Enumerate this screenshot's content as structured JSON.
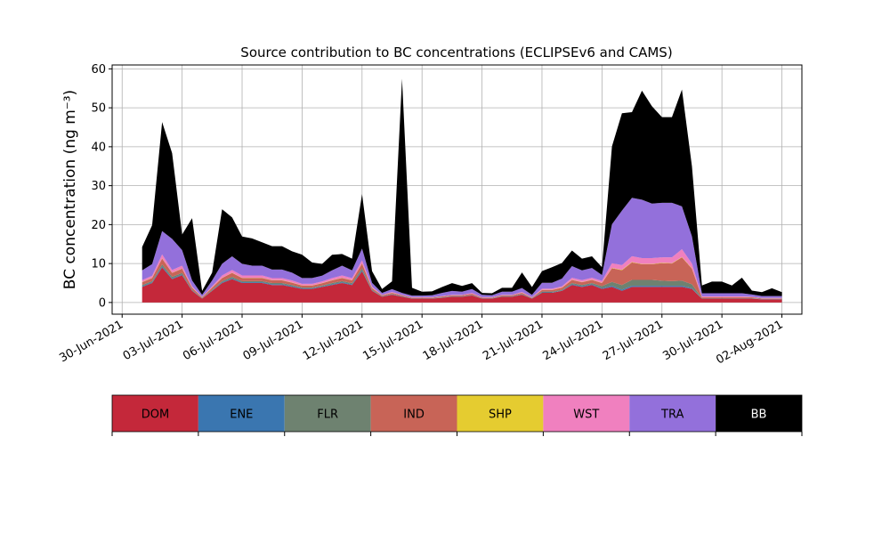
{
  "chart_data": {
    "type": "area",
    "title": "Source contribution to BC concentrations (ECLIPSEv6 and CAMS)",
    "xlabel": "",
    "ylabel": "BC concentration (ng m⁻³)",
    "ylim": [
      -3,
      61
    ],
    "grid": true,
    "stacked": true,
    "x_unit": "date",
    "x_ticks": [
      "30-Jun-2021",
      "03-Jul-2021",
      "06-Jul-2021",
      "09-Jul-2021",
      "12-Jul-2021",
      "15-Jul-2021",
      "18-Jul-2021",
      "21-Jul-2021",
      "24-Jul-2021",
      "27-Jul-2021",
      "30-Jul-2021",
      "02-Aug-2021"
    ],
    "y_ticks": [
      0,
      10,
      20,
      30,
      40,
      50,
      60
    ],
    "x": [
      "2021-07-01",
      "2021-07-01 12:00",
      "2021-07-02",
      "2021-07-02 12:00",
      "2021-07-03",
      "2021-07-03 12:00",
      "2021-07-04",
      "2021-07-04 12:00",
      "2021-07-05",
      "2021-07-05 12:00",
      "2021-07-06",
      "2021-07-06 12:00",
      "2021-07-07",
      "2021-07-07 12:00",
      "2021-07-08",
      "2021-07-08 12:00",
      "2021-07-09",
      "2021-07-09 12:00",
      "2021-07-10",
      "2021-07-10 12:00",
      "2021-07-11",
      "2021-07-11 12:00",
      "2021-07-12",
      "2021-07-12 12:00",
      "2021-07-13",
      "2021-07-13 12:00",
      "2021-07-14",
      "2021-07-14 12:00",
      "2021-07-15",
      "2021-07-15 12:00",
      "2021-07-16",
      "2021-07-16 12:00",
      "2021-07-17",
      "2021-07-17 12:00",
      "2021-07-18",
      "2021-07-18 12:00",
      "2021-07-19",
      "2021-07-19 12:00",
      "2021-07-20",
      "2021-07-20 12:00",
      "2021-07-21",
      "2021-07-21 12:00",
      "2021-07-22",
      "2021-07-22 12:00",
      "2021-07-23",
      "2021-07-23 12:00",
      "2021-07-24",
      "2021-07-24 12:00",
      "2021-07-25",
      "2021-07-25 12:00",
      "2021-07-26",
      "2021-07-26 12:00",
      "2021-07-27",
      "2021-07-27 12:00",
      "2021-07-28",
      "2021-07-28 12:00",
      "2021-07-29",
      "2021-07-29 12:00",
      "2021-07-30",
      "2021-07-30 12:00",
      "2021-07-31",
      "2021-07-31 12:00",
      "2021-08-01",
      "2021-08-01 12:00",
      "2021-08-02"
    ],
    "series": [
      {
        "name": "DOM",
        "color": "#c4283a",
        "values": [
          4,
          5,
          9,
          6,
          7,
          3,
          1,
          3,
          5,
          6,
          5,
          5,
          5,
          4.5,
          4.5,
          4,
          3.5,
          3.5,
          4,
          4.5,
          5,
          4.5,
          8,
          3,
          1.5,
          2,
          1.5,
          1,
          1,
          1,
          1.2,
          1.5,
          1.5,
          1.8,
          1,
          1,
          1.5,
          1.5,
          2,
          1,
          2.5,
          2.5,
          3,
          4.5,
          4,
          4.5,
          3.5,
          4,
          3,
          4,
          4,
          4,
          4,
          4,
          4,
          3.5,
          1,
          1,
          1,
          1,
          1,
          1,
          0.8,
          0.8,
          0.8
        ]
      },
      {
        "name": "ENE",
        "color": "#3a76b0",
        "values": [
          0.2,
          0.2,
          0.3,
          0.2,
          0.2,
          0.1,
          0.05,
          0.1,
          0.2,
          0.2,
          0.2,
          0.2,
          0.2,
          0.2,
          0.2,
          0.2,
          0.15,
          0.15,
          0.15,
          0.2,
          0.2,
          0.2,
          0.3,
          0.1,
          0.05,
          0.1,
          0.05,
          0.05,
          0.05,
          0.05,
          0.05,
          0.05,
          0.05,
          0.05,
          0.05,
          0.05,
          0.05,
          0.05,
          0.1,
          0.05,
          0.1,
          0.1,
          0.1,
          0.2,
          0.2,
          0.2,
          0.2,
          0.3,
          0.3,
          0.3,
          0.3,
          0.3,
          0.3,
          0.3,
          0.3,
          0.2,
          0.05,
          0.05,
          0.05,
          0.05,
          0.05,
          0.05,
          0.05,
          0.05,
          0.05
        ]
      },
      {
        "name": "FLR",
        "color": "#6e8270",
        "values": [
          0.3,
          0.3,
          0.5,
          0.4,
          0.4,
          0.2,
          0.1,
          0.2,
          0.3,
          0.4,
          0.3,
          0.3,
          0.3,
          0.3,
          0.3,
          0.3,
          0.2,
          0.2,
          0.2,
          0.3,
          0.3,
          0.3,
          0.5,
          0.2,
          0.1,
          0.1,
          0.1,
          0.1,
          0.1,
          0.1,
          0.1,
          0.1,
          0.1,
          0.1,
          0.1,
          0.1,
          0.1,
          0.1,
          0.1,
          0.1,
          0.2,
          0.2,
          0.2,
          0.3,
          0.3,
          0.3,
          0.5,
          1,
          1.2,
          1.5,
          1.5,
          1.5,
          1.3,
          1.2,
          1.3,
          1,
          0.1,
          0.1,
          0.1,
          0.1,
          0.1,
          0.1,
          0.1,
          0.1,
          0.1
        ]
      },
      {
        "name": "IND",
        "color": "#c86457",
        "values": [
          0.7,
          0.8,
          1.5,
          1,
          1.1,
          0.5,
          0.2,
          0.5,
          0.8,
          1,
          0.8,
          0.8,
          0.8,
          0.7,
          0.7,
          0.6,
          0.5,
          0.5,
          0.6,
          0.7,
          0.8,
          0.7,
          1.2,
          0.4,
          0.2,
          0.3,
          0.2,
          0.1,
          0.1,
          0.1,
          0.2,
          0.2,
          0.2,
          0.3,
          0.1,
          0.1,
          0.2,
          0.2,
          0.3,
          0.1,
          0.4,
          0.4,
          0.5,
          0.8,
          0.7,
          0.8,
          0.8,
          3.5,
          3.8,
          4.5,
          4,
          4,
          4.5,
          4.5,
          6,
          4,
          0.2,
          0.2,
          0.2,
          0.2,
          0.2,
          0.2,
          0.1,
          0.1,
          0.1
        ]
      },
      {
        "name": "SHP",
        "color": "#e5cc30",
        "values": [
          0.05,
          0.05,
          0.05,
          0.05,
          0.05,
          0.05,
          0.02,
          0.05,
          0.05,
          0.05,
          0.05,
          0.05,
          0.05,
          0.05,
          0.05,
          0.05,
          0.05,
          0.05,
          0.05,
          0.05,
          0.05,
          0.05,
          0.05,
          0.05,
          0.02,
          0.02,
          0.02,
          0.02,
          0.02,
          0.02,
          0.02,
          0.02,
          0.02,
          0.02,
          0.02,
          0.02,
          0.02,
          0.02,
          0.02,
          0.02,
          0.05,
          0.05,
          0.05,
          0.05,
          0.05,
          0.05,
          0.05,
          0.1,
          0.1,
          0.1,
          0.1,
          0.1,
          0.1,
          0.1,
          0.1,
          0.1,
          0.02,
          0.02,
          0.02,
          0.02,
          0.02,
          0.02,
          0.02,
          0.02,
          0.02
        ]
      },
      {
        "name": "WST",
        "color": "#f080bf",
        "values": [
          0.5,
          0.5,
          1,
          0.7,
          0.7,
          0.3,
          0.1,
          0.3,
          0.6,
          0.7,
          0.6,
          0.6,
          0.6,
          0.5,
          0.5,
          0.5,
          0.4,
          0.4,
          0.4,
          0.5,
          0.6,
          0.5,
          0.8,
          0.3,
          0.1,
          0.2,
          0.1,
          0.1,
          0.1,
          0.1,
          0.1,
          0.1,
          0.1,
          0.2,
          0.1,
          0.1,
          0.1,
          0.1,
          0.2,
          0.1,
          0.3,
          0.3,
          0.3,
          0.5,
          0.5,
          0.5,
          0.5,
          1.2,
          1.2,
          1.5,
          1.5,
          1.5,
          1.4,
          1.5,
          2,
          1.2,
          0.2,
          0.2,
          0.2,
          0.2,
          0.2,
          0.1,
          0.1,
          0.1,
          0.1
        ]
      },
      {
        "name": "TRA",
        "color": "#9370db",
        "values": [
          2.5,
          3,
          6,
          8,
          4,
          1.5,
          0.5,
          1.5,
          3,
          3.5,
          3,
          2.5,
          2.5,
          2.2,
          2.2,
          2,
          1.5,
          1.5,
          1.5,
          2,
          2.5,
          2,
          3,
          1,
          0.5,
          0.7,
          0.5,
          0.4,
          0.4,
          0.5,
          0.8,
          1,
          0.8,
          1,
          0.6,
          0.5,
          0.8,
          0.8,
          1,
          0.6,
          1.5,
          1.5,
          2,
          3,
          2.5,
          2.5,
          1.5,
          10,
          14,
          15,
          15,
          14,
          14,
          14,
          11,
          7,
          0.8,
          0.8,
          0.8,
          0.8,
          0.8,
          0.6,
          0.5,
          0.5,
          0.5
        ]
      },
      {
        "name": "BB",
        "color": "#000000",
        "values": [
          6,
          10,
          28,
          22,
          4,
          16,
          1,
          2,
          14,
          10,
          7,
          7,
          6,
          6,
          6,
          5.5,
          6,
          4,
          3,
          4,
          3,
          3,
          14,
          3,
          1,
          2,
          55,
          2,
          1,
          1,
          1.5,
          2,
          1.5,
          1.5,
          0.5,
          0.5,
          1,
          1,
          4,
          2,
          3,
          4,
          4,
          4,
          3,
          3,
          2,
          20,
          25,
          22,
          28,
          25,
          22,
          22,
          30,
          18,
          2,
          3,
          3,
          2,
          4,
          1,
          1,
          2,
          1
        ]
      }
    ]
  }
}
